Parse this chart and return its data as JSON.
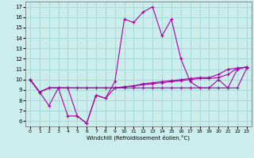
{
  "xlabel": "Windchill (Refroidissement éolien,°C)",
  "background_color": "#cbeeed",
  "grid_color": "#a8d8d8",
  "line_color": "#aa00aa",
  "xlim": [
    -0.5,
    23.5
  ],
  "ylim": [
    5.5,
    17.5
  ],
  "xticks": [
    0,
    1,
    2,
    3,
    4,
    5,
    6,
    7,
    8,
    9,
    10,
    11,
    12,
    13,
    14,
    15,
    16,
    17,
    18,
    19,
    20,
    21,
    22,
    23
  ],
  "yticks": [
    6,
    7,
    8,
    9,
    10,
    11,
    12,
    13,
    14,
    15,
    16,
    17
  ],
  "series": [
    [
      10.0,
      8.8,
      9.2,
      9.2,
      9.2,
      9.2,
      9.2,
      9.2,
      9.2,
      9.2,
      9.3,
      9.4,
      9.5,
      9.6,
      9.7,
      9.8,
      9.9,
      10.0,
      10.1,
      10.1,
      10.2,
      10.5,
      11.1,
      11.2
    ],
    [
      10.0,
      8.8,
      9.2,
      9.2,
      9.2,
      9.2,
      9.2,
      9.2,
      9.2,
      9.2,
      9.3,
      9.4,
      9.6,
      9.7,
      9.8,
      9.9,
      10.0,
      10.1,
      10.2,
      10.2,
      10.5,
      11.0,
      11.1,
      11.2
    ],
    [
      10.0,
      8.8,
      9.2,
      9.2,
      6.5,
      6.5,
      5.8,
      8.5,
      8.2,
      9.2,
      9.2,
      9.2,
      9.2,
      9.2,
      9.2,
      9.2,
      9.2,
      9.2,
      9.2,
      9.2,
      9.2,
      9.2,
      9.2,
      11.1
    ],
    [
      10.0,
      8.8,
      7.5,
      9.2,
      9.2,
      6.5,
      5.8,
      8.5,
      8.2,
      9.8,
      15.8,
      15.5,
      16.5,
      17.0,
      14.2,
      15.8,
      12.0,
      9.8,
      9.2,
      9.2,
      10.0,
      9.2,
      11.0,
      11.2
    ]
  ]
}
